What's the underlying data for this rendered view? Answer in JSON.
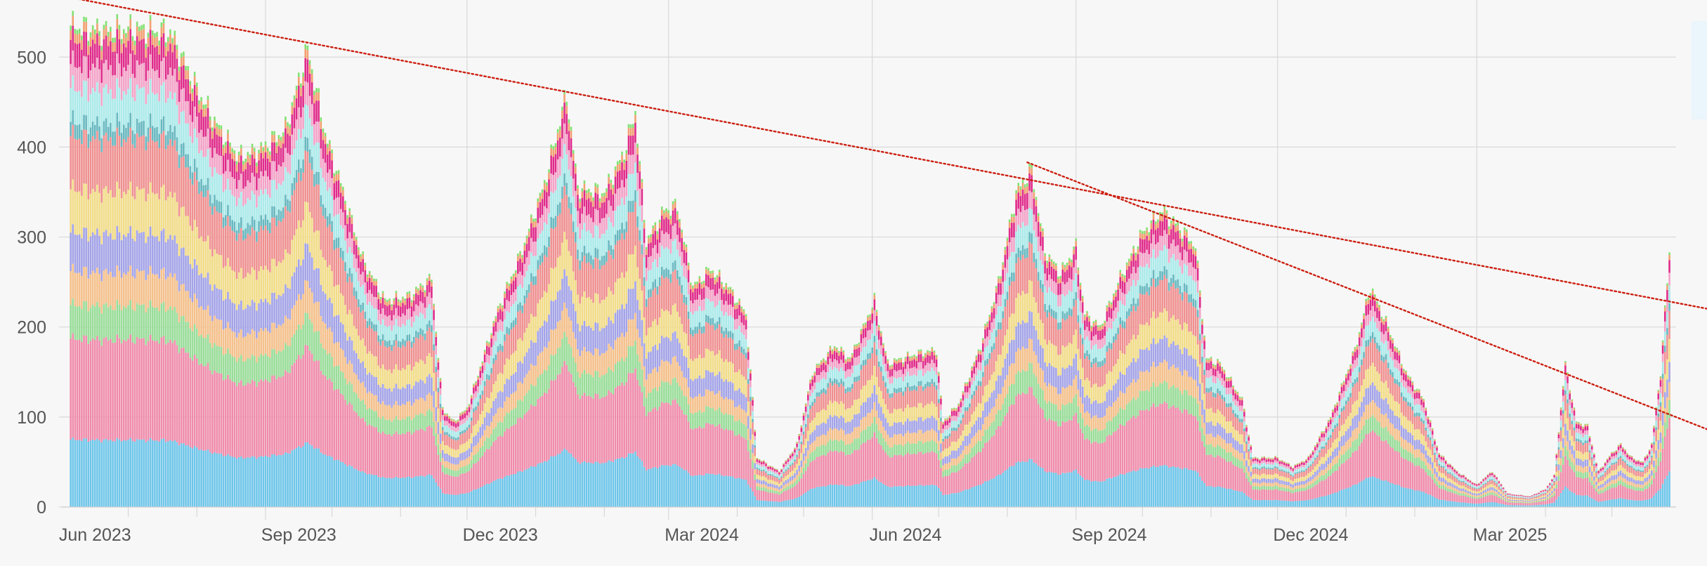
{
  "chart_data": {
    "type": "bar",
    "stacked": true,
    "title": "",
    "xlabel": "",
    "ylabel": "",
    "ylim": [
      0,
      540
    ],
    "yticks": [
      0,
      100,
      200,
      300,
      400,
      500
    ],
    "x_tick_labels": [
      {
        "date": "2023-06-01",
        "label": "Jun 2023"
      },
      {
        "date": "2023-09-01",
        "label": "Sep 2023"
      },
      {
        "date": "2023-12-01",
        "label": "Dec 2023"
      },
      {
        "date": "2024-03-01",
        "label": "Mar 2024"
      },
      {
        "date": "2024-06-01",
        "label": "Jun 2024"
      },
      {
        "date": "2024-09-01",
        "label": "Sep 2024"
      },
      {
        "date": "2024-12-01",
        "label": "Dec 2024"
      },
      {
        "date": "2025-03-01",
        "label": "Mar 2025"
      }
    ],
    "grid": true,
    "legend": "none",
    "x_start": "2023-06-05",
    "x_end": "2025-05-27",
    "series_colors": [
      "#6ec6ea",
      "#f08bab",
      "#98dd98",
      "#f5c08a",
      "#a3a3e8",
      "#f2dc86",
      "#f09090",
      "#66b8c0",
      "#aaeaea",
      "#f4a3c8",
      "#e02a8a",
      "#f2a070",
      "#82e272"
    ],
    "series_shares": [
      0.14,
      0.21,
      0.07,
      0.07,
      0.08,
      0.09,
      0.11,
      0.03,
      0.07,
      0.05,
      0.05,
      0.02,
      0.01
    ],
    "totals": [
      [
        "2023-06-05",
        535
      ],
      [
        "2023-06-20",
        530
      ],
      [
        "2023-07-05",
        532
      ],
      [
        "2023-07-20",
        528
      ],
      [
        "2023-08-01",
        465
      ],
      [
        "2023-08-10",
        425
      ],
      [
        "2023-08-20",
        390
      ],
      [
        "2023-08-30",
        398
      ],
      [
        "2023-09-10",
        420
      ],
      [
        "2023-09-20",
        510
      ],
      [
        "2023-09-28",
        415
      ],
      [
        "2023-10-05",
        360
      ],
      [
        "2023-10-15",
        275
      ],
      [
        "2023-10-25",
        230
      ],
      [
        "2023-11-05",
        235
      ],
      [
        "2023-11-15",
        255
      ],
      [
        "2023-11-20",
        110
      ],
      [
        "2023-11-25",
        95
      ],
      [
        "2023-12-01",
        110
      ],
      [
        "2023-12-05",
        140
      ],
      [
        "2023-12-15",
        220
      ],
      [
        "2023-12-25",
        280
      ],
      [
        "2024-01-05",
        360
      ],
      [
        "2024-01-15",
        460
      ],
      [
        "2024-01-20",
        355
      ],
      [
        "2024-02-01",
        350
      ],
      [
        "2024-02-10",
        395
      ],
      [
        "2024-02-15",
        440
      ],
      [
        "2024-02-20",
        295
      ],
      [
        "2024-02-28",
        330
      ],
      [
        "2024-03-05",
        335
      ],
      [
        "2024-03-12",
        245
      ],
      [
        "2024-03-20",
        265
      ],
      [
        "2024-03-28",
        245
      ],
      [
        "2024-04-05",
        215
      ],
      [
        "2024-04-10",
        55
      ],
      [
        "2024-04-20",
        40
      ],
      [
        "2024-04-28",
        70
      ],
      [
        "2024-05-05",
        150
      ],
      [
        "2024-05-15",
        180
      ],
      [
        "2024-05-22",
        165
      ],
      [
        "2024-06-02",
        230
      ],
      [
        "2024-06-08",
        160
      ],
      [
        "2024-06-20",
        170
      ],
      [
        "2024-06-30",
        175
      ],
      [
        "2024-07-03",
        95
      ],
      [
        "2024-07-10",
        115
      ],
      [
        "2024-07-20",
        180
      ],
      [
        "2024-07-28",
        250
      ],
      [
        "2024-08-05",
        350
      ],
      [
        "2024-08-12",
        375
      ],
      [
        "2024-08-18",
        285
      ],
      [
        "2024-08-25",
        260
      ],
      [
        "2024-09-01",
        290
      ],
      [
        "2024-09-05",
        215
      ],
      [
        "2024-09-12",
        200
      ],
      [
        "2024-09-20",
        250
      ],
      [
        "2024-10-01",
        305
      ],
      [
        "2024-10-10",
        330
      ],
      [
        "2024-10-20",
        305
      ],
      [
        "2024-10-25",
        290
      ],
      [
        "2024-10-30",
        165
      ],
      [
        "2024-11-05",
        160
      ],
      [
        "2024-11-15",
        120
      ],
      [
        "2024-11-20",
        55
      ],
      [
        "2024-12-01",
        55
      ],
      [
        "2024-12-08",
        45
      ],
      [
        "2024-12-15",
        55
      ],
      [
        "2024-12-25",
        100
      ],
      [
        "2025-01-05",
        175
      ],
      [
        "2025-01-12",
        245
      ],
      [
        "2025-01-20",
        200
      ],
      [
        "2025-01-28",
        150
      ],
      [
        "2025-02-05",
        120
      ],
      [
        "2025-02-12",
        60
      ],
      [
        "2025-02-20",
        40
      ],
      [
        "2025-03-01",
        25
      ],
      [
        "2025-03-08",
        40
      ],
      [
        "2025-03-15",
        15
      ],
      [
        "2025-03-25",
        12
      ],
      [
        "2025-04-01",
        20
      ],
      [
        "2025-04-05",
        35
      ],
      [
        "2025-04-10",
        160
      ],
      [
        "2025-04-15",
        95
      ],
      [
        "2025-04-20",
        90
      ],
      [
        "2025-04-25",
        40
      ],
      [
        "2025-05-01",
        60
      ],
      [
        "2025-05-05",
        70
      ],
      [
        "2025-05-10",
        55
      ],
      [
        "2025-05-15",
        50
      ],
      [
        "2025-05-19",
        70
      ],
      [
        "2025-05-23",
        150
      ],
      [
        "2025-05-27",
        285
      ]
    ],
    "trendlines": [
      {
        "points": [
          [
            "2023-06-01",
            568
          ],
          [
            "2025-06-01",
            226
          ]
        ],
        "color": "#cc1f10",
        "style": "dotted"
      },
      {
        "points": [
          [
            "2024-08-10",
            383
          ],
          [
            "2025-06-01",
            98
          ]
        ],
        "color": "#cc1f10",
        "style": "dotted"
      }
    ],
    "background_color": "#f7f7f7",
    "grid_color": "#d9d9d9",
    "tick_label_color": "#555555"
  }
}
